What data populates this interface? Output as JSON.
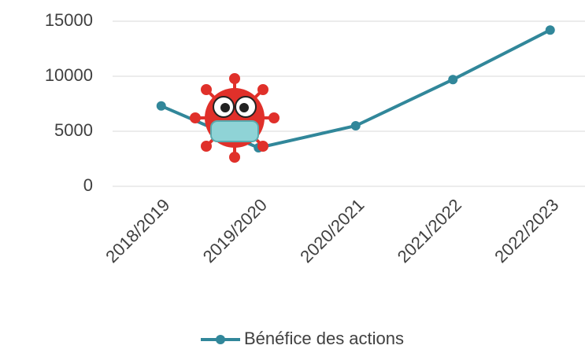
{
  "chart_data": {
    "type": "line",
    "categories": [
      "2018/2019",
      "2019/2020",
      "2020/2021",
      "2021/2022",
      "2022/2023"
    ],
    "series": [
      {
        "name": "Bénéfice des actions",
        "color": "#31879a",
        "values": [
          7300,
          3500,
          5500,
          9700,
          14200
        ]
      }
    ],
    "ylim": [
      0,
      15000
    ],
    "yticks": [
      0,
      5000,
      10000,
      15000
    ],
    "grid": true,
    "legend": "bottom"
  }
}
